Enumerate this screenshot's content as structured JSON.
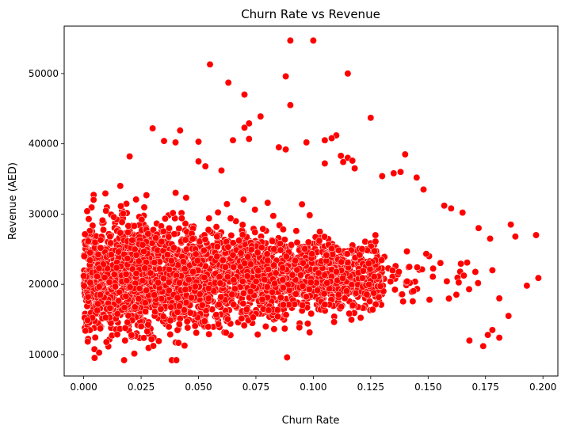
{
  "chart_data": {
    "type": "scatter",
    "title": "Churn Rate vs Revenue",
    "xlabel": "Churn Rate",
    "ylabel": "Revenue (AED)",
    "xlim": [
      -0.0085,
      0.2065
    ],
    "ylim": [
      6950,
      56750
    ],
    "xticks": [
      0.0,
      0.025,
      0.05,
      0.075,
      0.1,
      0.125,
      0.15,
      0.175,
      0.2
    ],
    "xtick_labels": [
      "0.000",
      "0.025",
      "0.050",
      "0.075",
      "0.100",
      "0.125",
      "0.150",
      "0.175",
      "0.200"
    ],
    "yticks": [
      10000,
      20000,
      30000,
      40000,
      50000
    ],
    "ytick_labels": [
      "10000",
      "20000",
      "30000",
      "40000",
      "50000"
    ],
    "grid": false,
    "legend": "none",
    "colors": {
      "marker_fill": "#ff0000",
      "marker_edge": "#ffffff"
    },
    "dense_cloud": {
      "x_range": [
        0.0,
        0.172
      ],
      "y_range": [
        9200,
        34000
      ],
      "approx_points": 6000,
      "note": "bulk of points; density tapers toward high churn"
    },
    "series": [
      {
        "x": [
          0.09,
          0.1,
          0.055,
          0.063,
          0.07,
          0.115,
          0.088,
          0.09,
          0.072,
          0.07,
          0.077,
          0.125,
          0.03,
          0.042,
          0.035,
          0.04,
          0.05,
          0.065,
          0.072,
          0.097,
          0.085,
          0.088,
          0.105,
          0.11,
          0.108,
          0.112,
          0.115,
          0.118,
          0.113,
          0.117,
          0.105,
          0.14,
          0.138,
          0.02,
          0.05,
          0.053,
          0.06,
          0.13,
          0.135,
          0.145,
          0.148,
          0.157,
          0.16,
          0.165,
          0.178,
          0.172,
          0.177,
          0.181,
          0.186,
          0.188,
          0.185,
          0.193,
          0.197,
          0.198,
          0.174,
          0.168,
          0.181,
          0.178,
          0.176
        ],
        "y": [
          54700,
          54700,
          51300,
          48700,
          47000,
          50000,
          49600,
          45500,
          42900,
          42300,
          43900,
          43700,
          42200,
          41900,
          40400,
          40200,
          40300,
          40500,
          40700,
          40200,
          39500,
          39200,
          40500,
          41200,
          40800,
          38300,
          38000,
          36500,
          37400,
          37600,
          37200,
          38500,
          36000,
          38200,
          37500,
          36800,
          36200,
          35400,
          35800,
          35200,
          33500,
          31200,
          30800,
          30200,
          22000,
          28000,
          26500,
          18000,
          28500,
          26800,
          15500,
          19800,
          27000,
          20900,
          11200,
          12000,
          12400,
          13500,
          12800
        ]
      }
    ]
  }
}
